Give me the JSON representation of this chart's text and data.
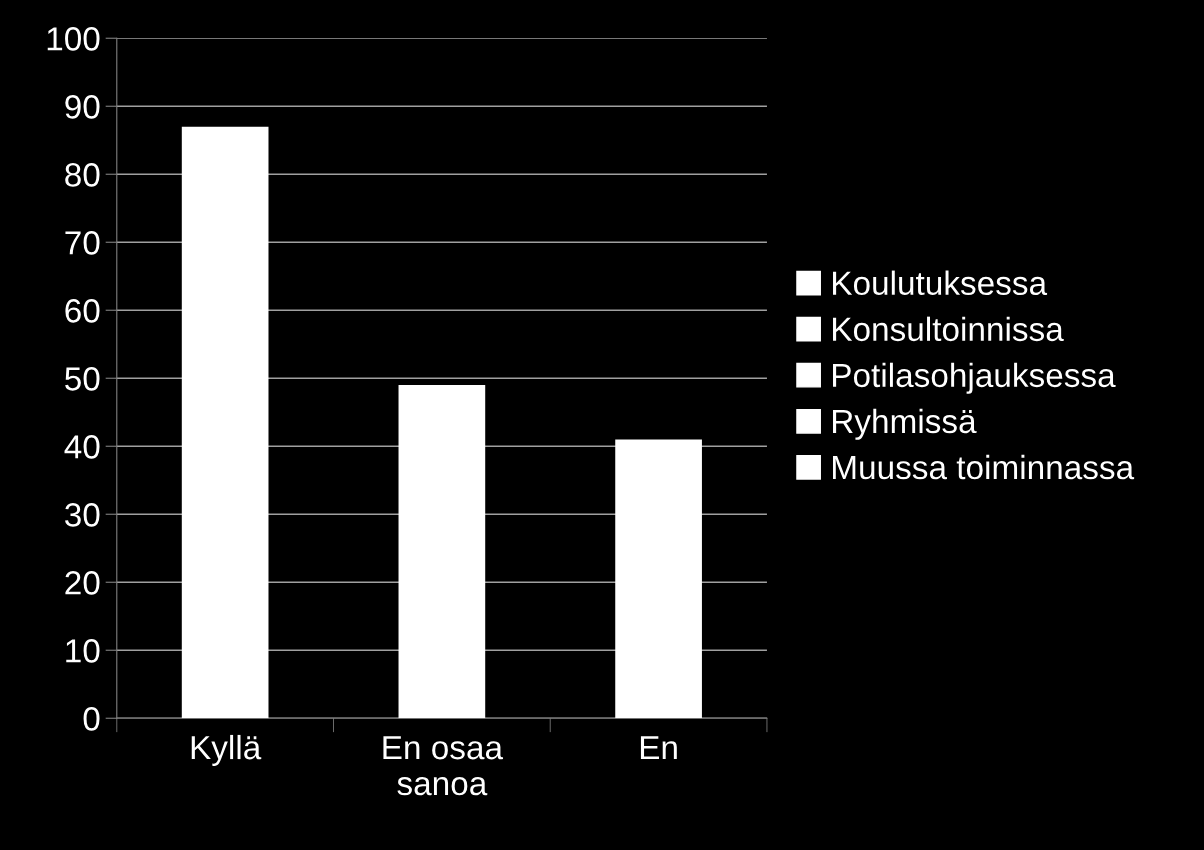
{
  "chart_data": {
    "type": "bar",
    "categories": [
      "Kyllä",
      "En osaa\nsanoa",
      "En"
    ],
    "series": [
      {
        "name": "Koulutuksessa",
        "color": "#ffffff",
        "values": [
          87,
          49,
          41
        ]
      },
      {
        "name": "Konsultoinnissa",
        "color": "#ffffff",
        "values": [
          null,
          null,
          null
        ]
      },
      {
        "name": "Potilasohjauksessa",
        "color": "#ffffff",
        "values": [
          null,
          null,
          null
        ]
      },
      {
        "name": "Ryhmissä",
        "color": "#ffffff",
        "values": [
          null,
          null,
          null
        ]
      },
      {
        "name": "Muussa toiminnassa",
        "color": "#ffffff",
        "values": [
          null,
          null,
          null
        ]
      }
    ],
    "ylim": [
      0,
      100
    ],
    "yticks": [
      0,
      10,
      20,
      30,
      40,
      50,
      60,
      70,
      80,
      90,
      100
    ],
    "grid": "y",
    "legend": "right"
  }
}
